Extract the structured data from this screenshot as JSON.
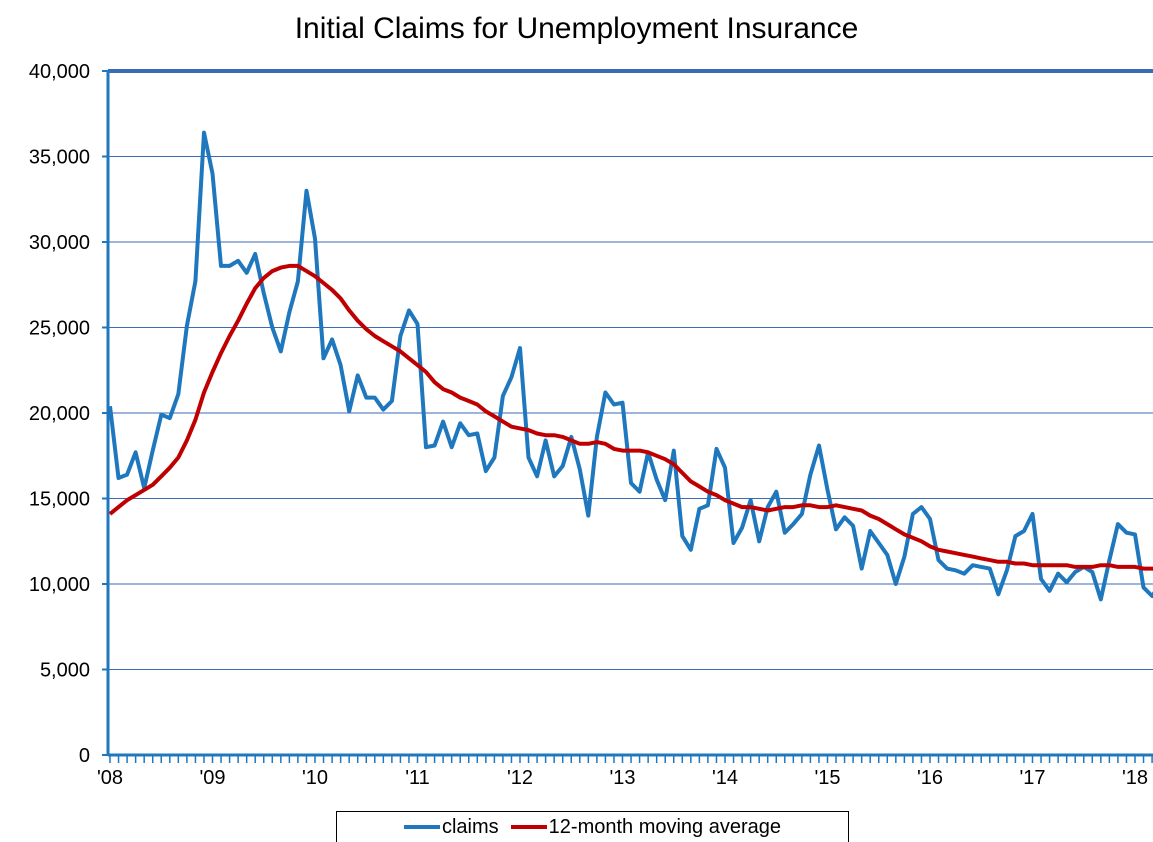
{
  "chart_data": {
    "type": "line",
    "title": "Initial Claims for Unemployment Insurance",
    "xlabel": "",
    "ylabel": "",
    "ylim": [
      0,
      40000
    ],
    "yticks": [
      "0",
      "5,000",
      "10,000",
      "15,000",
      "20,000",
      "25,000",
      "30,000",
      "35,000",
      "40,000"
    ],
    "xticks": [
      "'08",
      "'09",
      "'10",
      "'11",
      "'12",
      "'13",
      "'14",
      "'15",
      "'16",
      "'17",
      "'18"
    ],
    "x_start": "2008-01",
    "x_end": "2018-04",
    "grid": "horizontal",
    "legend_position": "bottom",
    "series": [
      {
        "name": "claims",
        "color": "#1F77BD",
        "values": [
          20400,
          16200,
          16400,
          17700,
          15600,
          17800,
          19900,
          19700,
          21100,
          25100,
          27700,
          36400,
          34000,
          28600,
          28600,
          28900,
          28200,
          29300,
          27000,
          25000,
          23600,
          25900,
          27700,
          33000,
          30200,
          23200,
          24300,
          22800,
          20100,
          22200,
          20900,
          20900,
          20200,
          20700,
          24500,
          26000,
          25200,
          18000,
          18100,
          19500,
          18000,
          19400,
          18700,
          18800,
          16600,
          17400,
          21000,
          22100,
          23800,
          17400,
          16300,
          18400,
          16300,
          16900,
          18600,
          16700,
          14000,
          18600,
          21200,
          20500,
          20600,
          15900,
          15400,
          17700,
          16100,
          14900,
          17800,
          12800,
          12000,
          14400,
          14600,
          17900,
          16800,
          12400,
          13300,
          14900,
          12500,
          14500,
          15400,
          13000,
          13500,
          14100,
          16400,
          18100,
          15500,
          13200,
          13900,
          13400,
          10900,
          13100,
          12400,
          11700,
          10000,
          11600,
          14100,
          14500,
          13800,
          11400,
          10900,
          10800,
          10600,
          11100,
          11000,
          10900,
          9400,
          10800,
          12800,
          13100,
          14100,
          10300,
          9600,
          10600,
          10100,
          10700,
          11000,
          10700,
          9100,
          11400,
          13500,
          13000,
          12900,
          9800,
          9300,
          10000
        ]
      },
      {
        "name": "12-month moving average",
        "color": "#C00000",
        "values": [
          14100,
          14500,
          14900,
          15200,
          15500,
          15800,
          16300,
          16800,
          17400,
          18400,
          19600,
          21200,
          22400,
          23500,
          24500,
          25400,
          26400,
          27300,
          27900,
          28300,
          28500,
          28600,
          28600,
          28300,
          28000,
          27600,
          27200,
          26700,
          26000,
          25400,
          24900,
          24500,
          24200,
          23900,
          23600,
          23200,
          22800,
          22400,
          21800,
          21400,
          21200,
          20900,
          20700,
          20500,
          20100,
          19800,
          19500,
          19200,
          19100,
          19000,
          18800,
          18700,
          18700,
          18600,
          18400,
          18200,
          18200,
          18300,
          18200,
          17900,
          17800,
          17800,
          17800,
          17700,
          17500,
          17300,
          17000,
          16500,
          16000,
          15700,
          15400,
          15200,
          14900,
          14700,
          14500,
          14500,
          14400,
          14300,
          14400,
          14500,
          14500,
          14600,
          14600,
          14500,
          14500,
          14600,
          14500,
          14400,
          14300,
          14000,
          13800,
          13500,
          13200,
          12900,
          12700,
          12500,
          12200,
          12000,
          11900,
          11800,
          11700,
          11600,
          11500,
          11400,
          11300,
          11300,
          11200,
          11200,
          11100,
          11100,
          11100,
          11100,
          11100,
          11000,
          11000,
          11000,
          11100,
          11100,
          11000,
          11000,
          11000,
          10900,
          10900,
          10800
        ]
      }
    ]
  }
}
